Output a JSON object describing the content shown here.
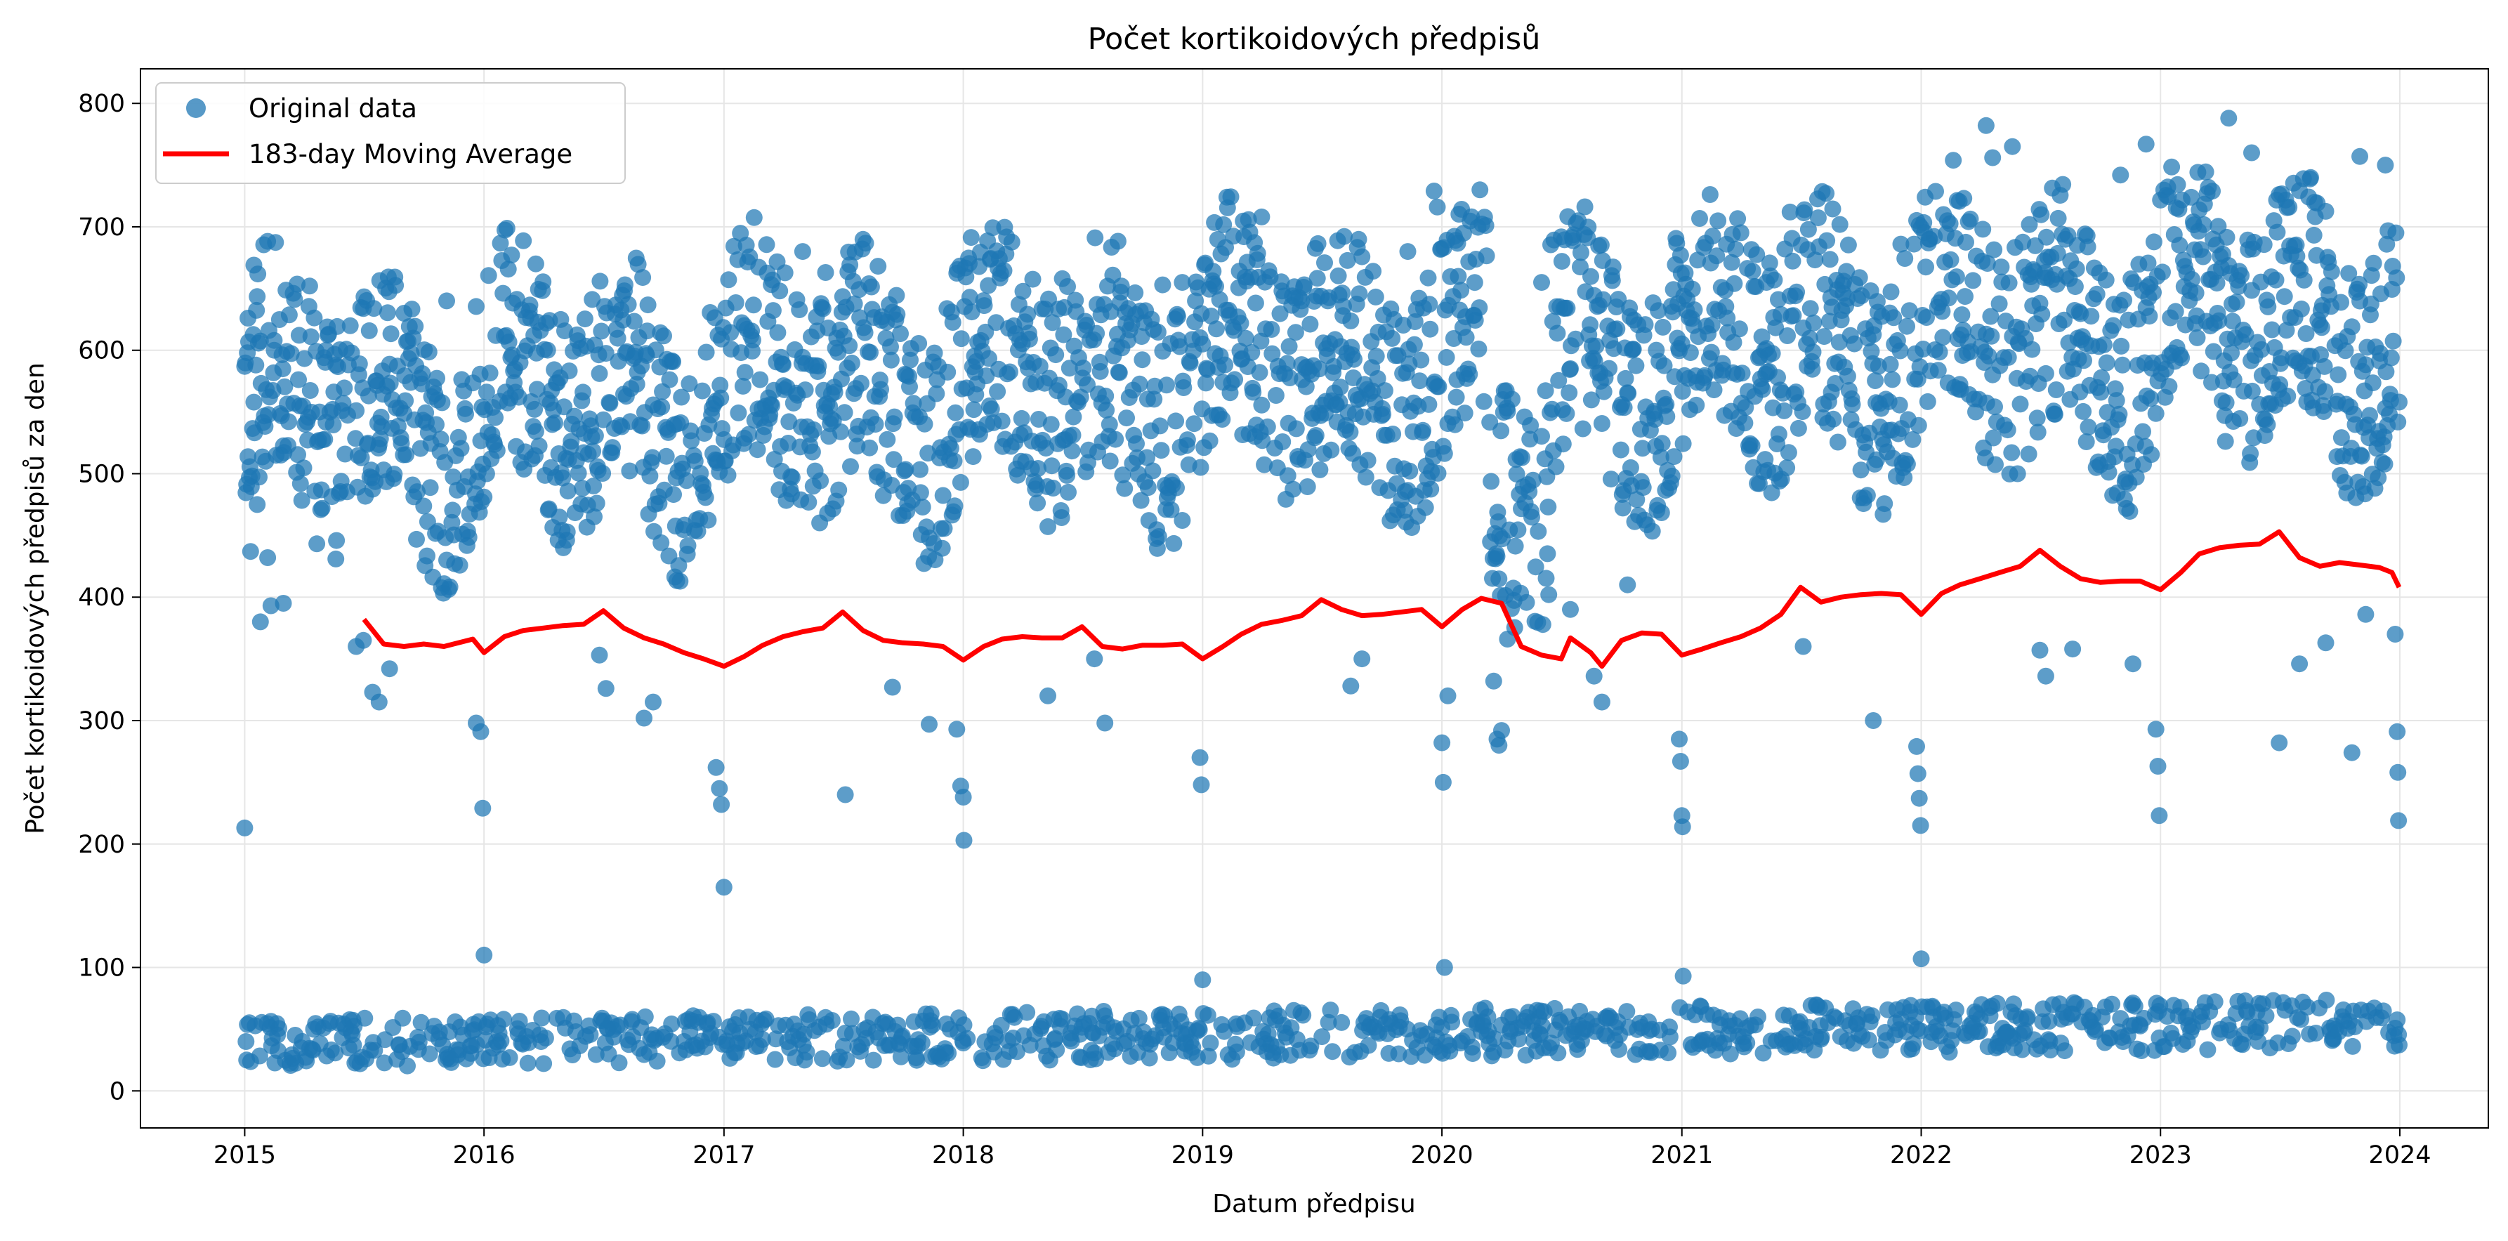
{
  "chart_data": {
    "type": "scatter",
    "title": "Počet kortikoidových předpisů",
    "xlabel": "Datum předpisu",
    "ylabel": "Počet kortikoidových předpisů za den",
    "xlim": [
      "2014-07-26",
      "2024-05-15"
    ],
    "ylim": [
      -30,
      828
    ],
    "x_ticks": [
      "2015",
      "2016",
      "2017",
      "2018",
      "2019",
      "2020",
      "2021",
      "2022",
      "2023",
      "2024"
    ],
    "y_ticks": [
      0,
      100,
      200,
      300,
      400,
      500,
      600,
      700,
      800
    ],
    "grid": true,
    "legend_position": "top-left",
    "colors": {
      "points": "#1f77b4",
      "moving_average": "#ff0000"
    },
    "series": [
      {
        "name": "Original data",
        "kind": "scatter",
        "note": "daily counts; weekday values cluster 350-790 with seasonal peaks in spring and late autumn, weekend values 15-85",
        "points": [
          [
            "2015-01-01",
            213
          ],
          [
            "2015-01-03",
            40
          ],
          [
            "2015-01-04",
            25
          ],
          [
            "2015-01-05",
            598
          ],
          [
            "2015-01-06",
            626
          ],
          [
            "2015-01-08",
            497
          ],
          [
            "2015-01-10",
            437
          ],
          [
            "2015-01-15",
            669
          ],
          [
            "2015-01-20",
            475
          ],
          [
            "2015-01-25",
            380
          ],
          [
            "2015-02-05",
            432
          ],
          [
            "2015-02-10",
            393
          ],
          [
            "2015-02-15",
            608
          ],
          [
            "2015-03-01",
            395
          ],
          [
            "2015-04-10",
            652
          ],
          [
            "2015-05-05",
            600
          ],
          [
            "2015-05-20",
            588
          ],
          [
            "2015-06-20",
            360
          ],
          [
            "2015-07-01",
            365
          ],
          [
            "2015-07-15",
            323
          ],
          [
            "2015-07-25",
            315
          ],
          [
            "2015-08-10",
            342
          ],
          [
            "2015-09-01",
            630
          ],
          [
            "2015-11-05",
            640
          ],
          [
            "2015-12-20",
            298
          ],
          [
            "2015-12-27",
            291
          ],
          [
            "2015-12-30",
            229
          ],
          [
            "2016-01-01",
            110
          ],
          [
            "2016-01-05",
            500
          ],
          [
            "2016-03-20",
            670
          ],
          [
            "2016-05-01",
            440
          ],
          [
            "2016-06-25",
            353
          ],
          [
            "2016-07-05",
            326
          ],
          [
            "2016-09-01",
            302
          ],
          [
            "2016-09-15",
            315
          ],
          [
            "2016-12-20",
            262
          ],
          [
            "2016-12-25",
            245
          ],
          [
            "2016-12-28",
            232
          ],
          [
            "2017-01-01",
            165
          ],
          [
            "2017-02-01",
            620
          ],
          [
            "2017-05-01",
            680
          ],
          [
            "2017-06-05",
            663
          ],
          [
            "2017-07-05",
            240
          ],
          [
            "2017-09-15",
            327
          ],
          [
            "2017-11-10",
            297
          ],
          [
            "2017-12-22",
            293
          ],
          [
            "2017-12-28",
            247
          ],
          [
            "2018-01-01",
            238
          ],
          [
            "2018-01-02",
            203
          ],
          [
            "2018-05-10",
            320
          ],
          [
            "2018-06-01",
            658
          ],
          [
            "2018-07-20",
            350
          ],
          [
            "2018-08-05",
            298
          ],
          [
            "2018-11-01",
            653
          ],
          [
            "2018-12-01",
            655
          ],
          [
            "2018-12-28",
            270
          ],
          [
            "2018-12-30",
            248
          ],
          [
            "2019-01-01",
            90
          ],
          [
            "2019-04-01",
            708
          ],
          [
            "2019-06-01",
            640
          ],
          [
            "2019-08-15",
            328
          ],
          [
            "2019-09-01",
            350
          ],
          [
            "2019-11-10",
            680
          ],
          [
            "2019-12-20",
            729
          ],
          [
            "2019-12-25",
            716
          ],
          [
            "2020-01-01",
            282
          ],
          [
            "2020-01-03",
            250
          ],
          [
            "2020-01-05",
            100
          ],
          [
            "2020-01-10",
            320
          ],
          [
            "2020-03-20",
            332
          ],
          [
            "2020-03-25",
            285
          ],
          [
            "2020-03-28",
            280
          ],
          [
            "2020-04-01",
            292
          ],
          [
            "2020-04-10",
            366
          ],
          [
            "2020-06-01",
            655
          ],
          [
            "2020-07-15",
            390
          ],
          [
            "2020-08-20",
            336
          ],
          [
            "2020-09-01",
            315
          ],
          [
            "2020-10-10",
            410
          ],
          [
            "2020-12-28",
            285
          ],
          [
            "2020-12-30",
            267
          ],
          [
            "2021-01-01",
            223
          ],
          [
            "2021-01-02",
            214
          ],
          [
            "2021-01-03",
            93
          ],
          [
            "2021-05-10",
            655
          ],
          [
            "2021-06-15",
            712
          ],
          [
            "2021-07-05",
            360
          ],
          [
            "2021-09-10",
            642
          ],
          [
            "2021-10-20",
            300
          ],
          [
            "2021-12-01",
            686
          ],
          [
            "2021-12-25",
            279
          ],
          [
            "2021-12-27",
            257
          ],
          [
            "2021-12-29",
            237
          ],
          [
            "2021-12-31",
            215
          ],
          [
            "2022-01-01",
            107
          ],
          [
            "2022-04-10",
            782
          ],
          [
            "2022-04-20",
            756
          ],
          [
            "2022-05-20",
            765
          ],
          [
            "2022-07-01",
            357
          ],
          [
            "2022-07-10",
            336
          ],
          [
            "2022-08-20",
            358
          ],
          [
            "2022-11-01",
            742
          ],
          [
            "2022-11-20",
            346
          ],
          [
            "2022-12-10",
            767
          ],
          [
            "2022-12-25",
            293
          ],
          [
            "2022-12-28",
            263
          ],
          [
            "2022-12-30",
            223
          ],
          [
            "2023-04-15",
            788
          ],
          [
            "2023-05-20",
            760
          ],
          [
            "2023-07-01",
            282
          ],
          [
            "2023-08-01",
            346
          ],
          [
            "2023-09-10",
            363
          ],
          [
            "2023-10-20",
            274
          ],
          [
            "2023-11-01",
            757
          ],
          [
            "2023-11-10",
            386
          ],
          [
            "2023-12-10",
            750
          ],
          [
            "2023-12-25",
            370
          ],
          [
            "2023-12-28",
            291
          ],
          [
            "2023-12-29",
            258
          ],
          [
            "2023-12-30",
            219
          ],
          [
            "2023-12-31",
            558
          ]
        ]
      },
      {
        "name": "183-day Moving Average",
        "kind": "line",
        "points": [
          [
            "2015-07-02",
            382
          ],
          [
            "2015-08-01",
            362
          ],
          [
            "2015-09-01",
            360
          ],
          [
            "2015-10-01",
            362
          ],
          [
            "2015-11-01",
            360
          ],
          [
            "2015-12-15",
            366
          ],
          [
            "2016-01-01",
            355
          ],
          [
            "2016-02-01",
            368
          ],
          [
            "2016-03-01",
            373
          ],
          [
            "2016-04-01",
            375
          ],
          [
            "2016-05-01",
            377
          ],
          [
            "2016-06-01",
            378
          ],
          [
            "2016-07-01",
            389
          ],
          [
            "2016-08-01",
            375
          ],
          [
            "2016-09-01",
            367
          ],
          [
            "2016-10-01",
            362
          ],
          [
            "2016-11-01",
            355
          ],
          [
            "2016-12-01",
            350
          ],
          [
            "2017-01-01",
            344
          ],
          [
            "2017-02-01",
            352
          ],
          [
            "2017-03-01",
            361
          ],
          [
            "2017-04-01",
            368
          ],
          [
            "2017-05-01",
            372
          ],
          [
            "2017-06-01",
            375
          ],
          [
            "2017-07-01",
            388
          ],
          [
            "2017-08-01",
            373
          ],
          [
            "2017-09-01",
            365
          ],
          [
            "2017-10-01",
            363
          ],
          [
            "2017-11-01",
            362
          ],
          [
            "2017-12-01",
            360
          ],
          [
            "2018-01-01",
            349
          ],
          [
            "2018-02-01",
            360
          ],
          [
            "2018-03-01",
            366
          ],
          [
            "2018-04-01",
            368
          ],
          [
            "2018-05-01",
            367
          ],
          [
            "2018-06-01",
            367
          ],
          [
            "2018-07-01",
            376
          ],
          [
            "2018-08-01",
            360
          ],
          [
            "2018-09-01",
            358
          ],
          [
            "2018-10-01",
            361
          ],
          [
            "2018-11-01",
            361
          ],
          [
            "2018-12-01",
            362
          ],
          [
            "2019-01-01",
            350
          ],
          [
            "2019-02-01",
            360
          ],
          [
            "2019-03-01",
            370
          ],
          [
            "2019-04-01",
            378
          ],
          [
            "2019-05-01",
            381
          ],
          [
            "2019-06-01",
            385
          ],
          [
            "2019-07-01",
            398
          ],
          [
            "2019-08-01",
            390
          ],
          [
            "2019-09-01",
            385
          ],
          [
            "2019-10-01",
            386
          ],
          [
            "2019-11-01",
            388
          ],
          [
            "2019-12-01",
            390
          ],
          [
            "2020-01-01",
            376
          ],
          [
            "2020-02-01",
            390
          ],
          [
            "2020-03-01",
            399
          ],
          [
            "2020-04-01",
            395
          ],
          [
            "2020-05-01",
            360
          ],
          [
            "2020-06-01",
            353
          ],
          [
            "2020-07-01",
            350
          ],
          [
            "2020-07-15",
            367
          ],
          [
            "2020-08-15",
            355
          ],
          [
            "2020-09-01",
            344
          ],
          [
            "2020-10-01",
            365
          ],
          [
            "2020-11-01",
            371
          ],
          [
            "2020-12-01",
            370
          ],
          [
            "2021-01-01",
            353
          ],
          [
            "2021-02-01",
            358
          ],
          [
            "2021-03-01",
            363
          ],
          [
            "2021-04-01",
            368
          ],
          [
            "2021-05-01",
            375
          ],
          [
            "2021-06-01",
            386
          ],
          [
            "2021-07-01",
            408
          ],
          [
            "2021-08-01",
            396
          ],
          [
            "2021-09-01",
            400
          ],
          [
            "2021-10-01",
            402
          ],
          [
            "2021-11-01",
            403
          ],
          [
            "2021-12-01",
            402
          ],
          [
            "2022-01-01",
            386
          ],
          [
            "2022-02-01",
            403
          ],
          [
            "2022-03-01",
            410
          ],
          [
            "2022-04-01",
            415
          ],
          [
            "2022-05-01",
            420
          ],
          [
            "2022-06-01",
            425
          ],
          [
            "2022-07-01",
            438
          ],
          [
            "2022-08-01",
            425
          ],
          [
            "2022-09-01",
            415
          ],
          [
            "2022-10-01",
            412
          ],
          [
            "2022-11-01",
            413
          ],
          [
            "2022-12-01",
            413
          ],
          [
            "2023-01-01",
            406
          ],
          [
            "2023-02-01",
            420
          ],
          [
            "2023-03-01",
            435
          ],
          [
            "2023-04-01",
            440
          ],
          [
            "2023-05-01",
            442
          ],
          [
            "2023-06-01",
            443
          ],
          [
            "2023-07-01",
            453
          ],
          [
            "2023-08-01",
            432
          ],
          [
            "2023-09-01",
            425
          ],
          [
            "2023-10-01",
            428
          ],
          [
            "2023-11-01",
            426
          ],
          [
            "2023-12-01",
            424
          ],
          [
            "2023-12-20",
            420
          ],
          [
            "2023-12-31",
            408
          ]
        ]
      }
    ]
  }
}
